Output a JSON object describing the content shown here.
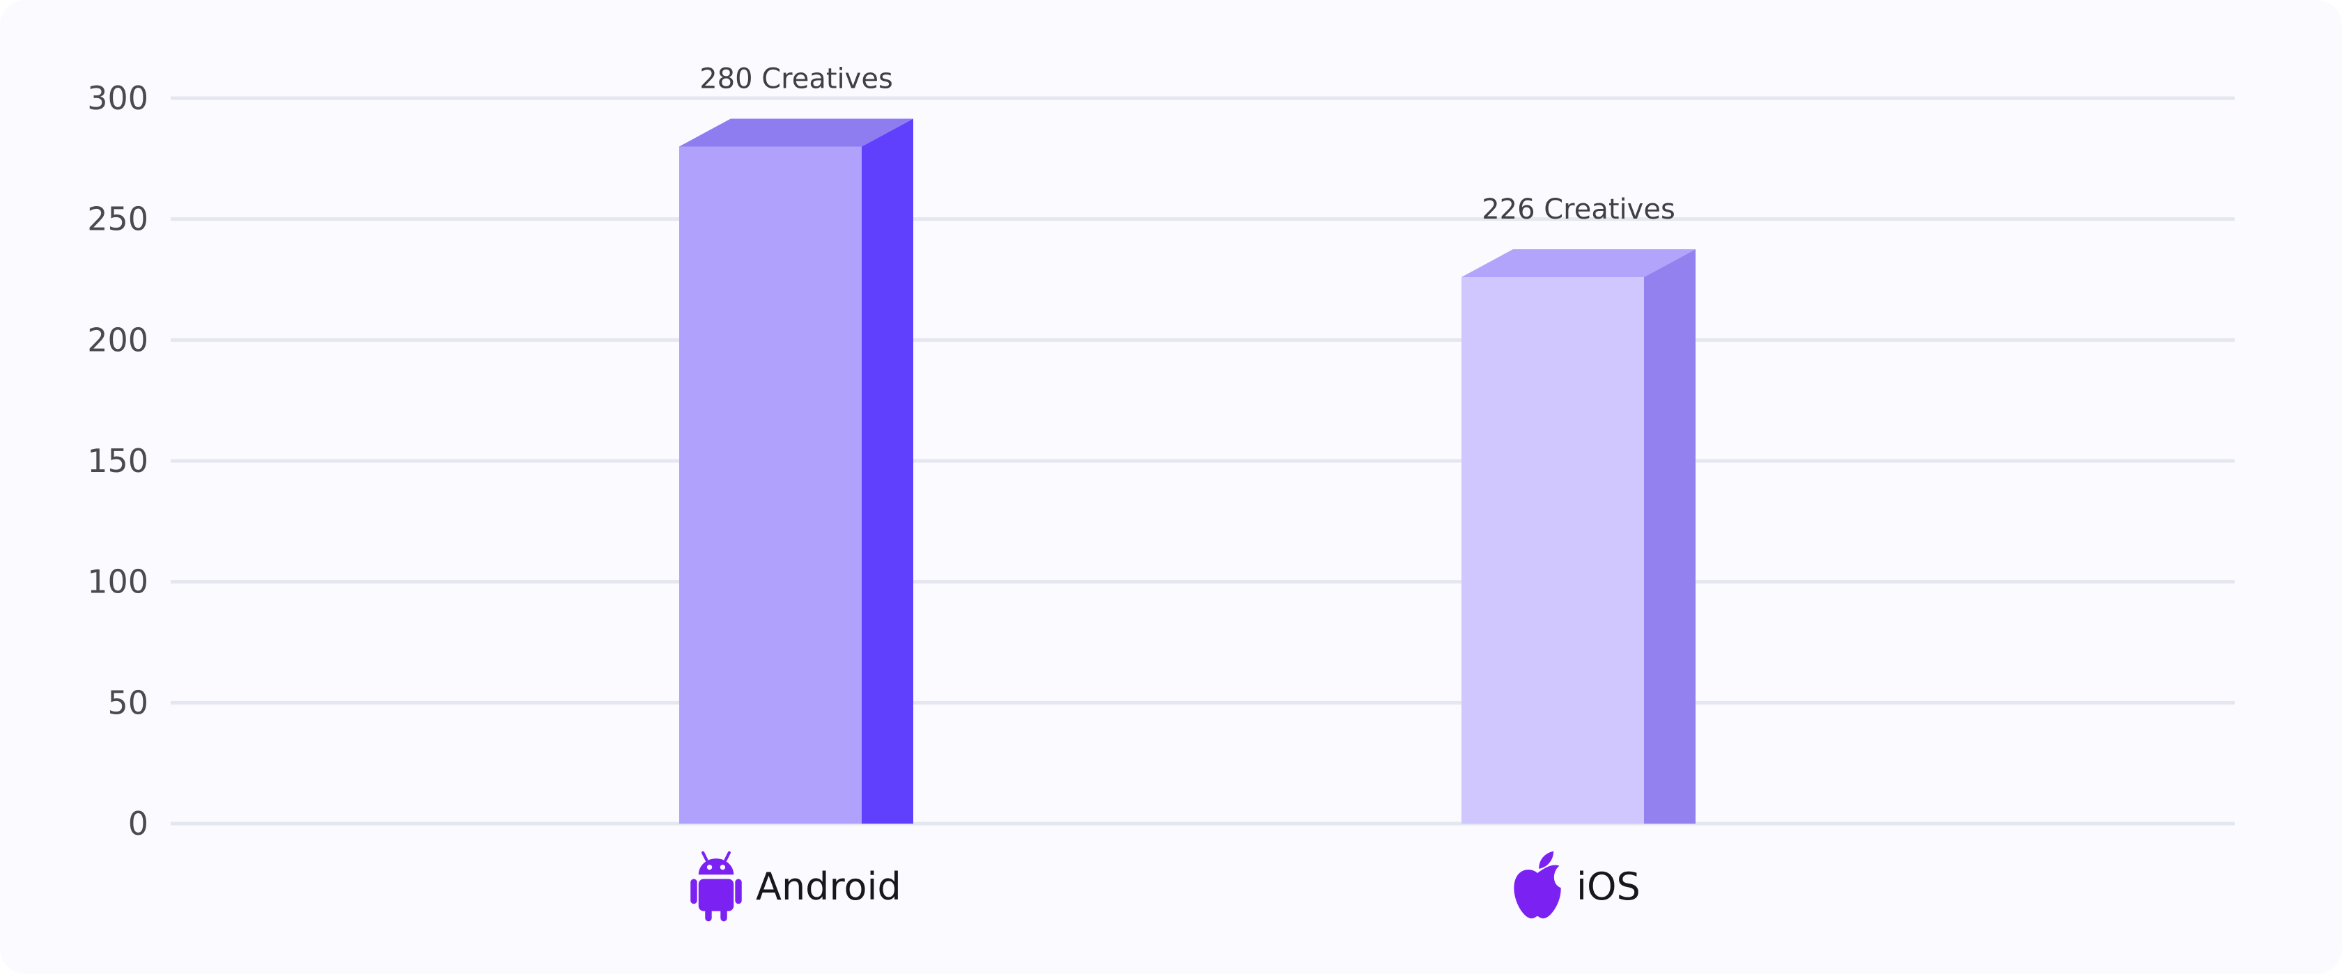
{
  "chart_data": {
    "type": "bar",
    "categories": [
      "Android",
      "iOS"
    ],
    "category_icons": [
      "android-icon",
      "apple-icon"
    ],
    "values": [
      280,
      226
    ],
    "data_labels": [
      "280 Creatives",
      "226 Creatives"
    ],
    "ylim": [
      0,
      300
    ],
    "yticks": [
      0,
      50,
      100,
      150,
      200,
      250,
      300
    ],
    "grid": true,
    "bar_style": "3d",
    "colors": {
      "icon": "#7b22f2",
      "grid": "#e4e6f0",
      "bars": [
        {
          "front": "#b0a1fc",
          "side": "#603ffd",
          "top": "#8d7df0"
        },
        {
          "front": "#d0c7fe",
          "side": "#9281ee",
          "top": "#b3a4fb"
        }
      ]
    }
  }
}
